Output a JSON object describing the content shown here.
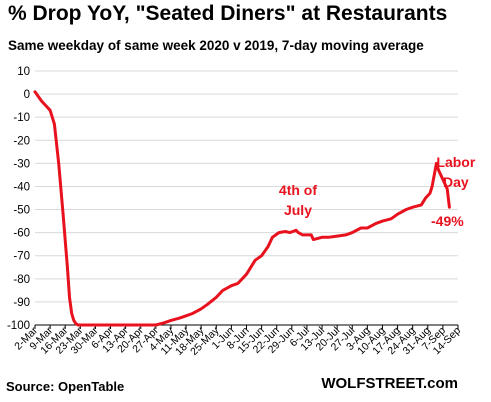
{
  "title": "% Drop YoY, \"Seated Diners\" at Restaurants",
  "subtitle": "Same weekday of same week 2020 v 2019, 7-day moving average",
  "source": "Source: OpenTable",
  "brand": "WOLFSTREET.com",
  "colors": {
    "line": "#e8121e",
    "annotation": "#e8121e",
    "grid": "#d9d9d9"
  },
  "chart_data": {
    "type": "line",
    "ylim": [
      -100,
      10
    ],
    "yticks": [
      10,
      0,
      -10,
      -20,
      -30,
      -40,
      -50,
      -60,
      -70,
      -80,
      -90,
      -100
    ],
    "xlim": [
      "2020-03-02",
      "2020-09-14"
    ],
    "xtick_labels": [
      "2-Mar",
      "9-Mar",
      "16-Mar",
      "23-Mar",
      "30-Mar",
      "6-Apr",
      "13-Apr",
      "20-Apr",
      "27-Apr",
      "4-May",
      "11-May",
      "18-May",
      "25-May",
      "1-Jun",
      "8-Jun",
      "15-Jun",
      "22-Jun",
      "29-Jun",
      "6-Jul",
      "13-Jul",
      "20-Jul",
      "27-Jul",
      "3-Aug",
      "10-Aug",
      "17-Aug",
      "24-Aug",
      "31-Aug",
      "7-Sep",
      "14-Sep"
    ],
    "grid": "horizontal",
    "series": [
      {
        "x": [
          "2020-03-02",
          "2020-03-05",
          "2020-03-07",
          "2020-03-09",
          "2020-03-11",
          "2020-03-13",
          "2020-03-15",
          "2020-03-17",
          "2020-03-18",
          "2020-03-19",
          "2020-03-20",
          "2020-03-21",
          "2020-03-22",
          "2020-03-24",
          "2020-03-27",
          "2020-04-01",
          "2020-04-15",
          "2020-04-27",
          "2020-05-01",
          "2020-05-04",
          "2020-05-08",
          "2020-05-11",
          "2020-05-14",
          "2020-05-18",
          "2020-05-21",
          "2020-05-25",
          "2020-05-28",
          "2020-06-01",
          "2020-06-04",
          "2020-06-06",
          "2020-06-08",
          "2020-06-10",
          "2020-06-12",
          "2020-06-15",
          "2020-06-18",
          "2020-06-20",
          "2020-06-23",
          "2020-06-26",
          "2020-06-28",
          "2020-07-01",
          "2020-07-02",
          "2020-07-04",
          "2020-07-06",
          "2020-07-08",
          "2020-07-09",
          "2020-07-11",
          "2020-07-13",
          "2020-07-16",
          "2020-07-20",
          "2020-07-24",
          "2020-07-27",
          "2020-07-31",
          "2020-08-03",
          "2020-08-07",
          "2020-08-10",
          "2020-08-14",
          "2020-08-17",
          "2020-08-21",
          "2020-08-24",
          "2020-08-28",
          "2020-08-30",
          "2020-09-01",
          "2020-09-02",
          "2020-09-04",
          "2020-09-05",
          "2020-09-07",
          "2020-09-09",
          "2020-09-10"
        ],
        "values": [
          1,
          -3,
          -5,
          -7,
          -13,
          -30,
          -52,
          -75,
          -88,
          -95,
          -98,
          -99.5,
          -100,
          -100,
          -100,
          -100,
          -100,
          -100,
          -99,
          -98,
          -97,
          -96,
          -95,
          -93,
          -91,
          -88,
          -85,
          -83,
          -82,
          -80,
          -78,
          -75,
          -72,
          -70,
          -66,
          -62,
          -60,
          -59.5,
          -60,
          -59,
          -60,
          -61,
          -61,
          -61,
          -63,
          -62.5,
          -62,
          -62,
          -61.5,
          -61,
          -60,
          -58,
          -58,
          -56,
          -55,
          -54,
          -52,
          -50,
          -49,
          -48,
          -45,
          -43,
          -40,
          -30,
          -33,
          -37,
          -41,
          -49
        ]
      }
    ],
    "annotations": [
      {
        "text": "4th of",
        "x": "2020-06-30"
      },
      {
        "text": "July",
        "x": "2020-06-30"
      },
      {
        "text": "Labor",
        "x": "2020-09-13"
      },
      {
        "text": "Day",
        "x": "2020-09-13"
      },
      {
        "text": "-49%",
        "x": "2020-09-10",
        "y": -49
      }
    ]
  }
}
